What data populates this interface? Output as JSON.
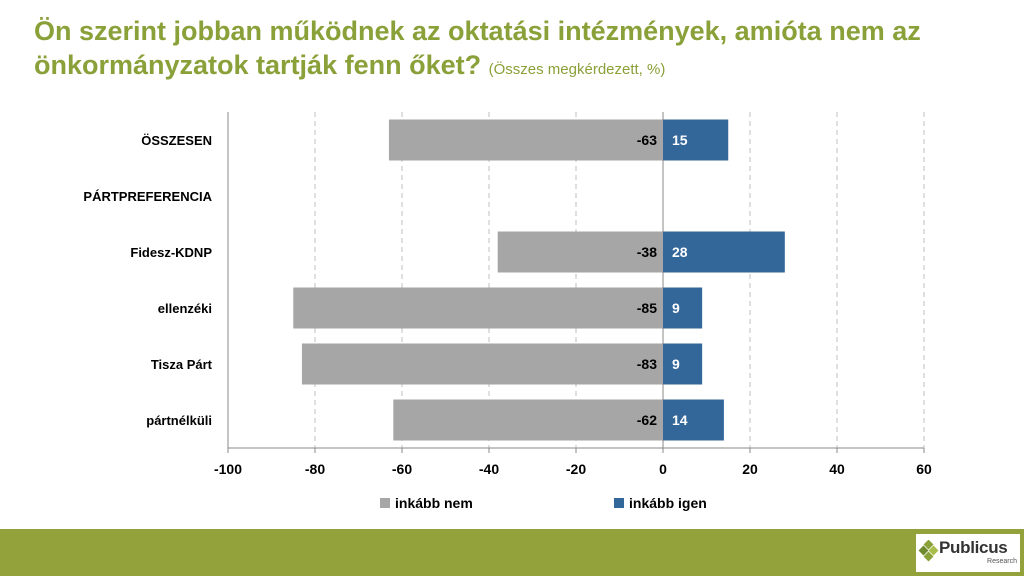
{
  "title": {
    "main": "Ön szerint jobban működnek az oktatási intézmények, amióta nem az önkormányzatok tartják fenn őket?",
    "subtitle": "(Összes megkérdezett, %)"
  },
  "chart_data": {
    "type": "bar",
    "orientation": "horizontal",
    "stacked": "diverging",
    "categories": [
      "ÖSSZESEN",
      "PÁRTPREFERENCIA",
      "Fidesz-KDNP",
      "ellenzéki",
      "Tisza Párt",
      "pártnélküli"
    ],
    "series": [
      {
        "name": "inkább nem",
        "values": [
          -63,
          null,
          -38,
          -85,
          -83,
          -62
        ],
        "color": "#a6a6a6",
        "label_color": "#000000"
      },
      {
        "name": "inkább igen",
        "values": [
          15,
          null,
          28,
          9,
          9,
          14
        ],
        "color": "#336699",
        "label_color": "#ffffff"
      }
    ],
    "xlim": [
      -100,
      60
    ],
    "xticks": [
      -100,
      -80,
      -60,
      -40,
      -20,
      0,
      20,
      40,
      60
    ],
    "grid": true,
    "legend": "bottom-center"
  },
  "colors": {
    "title": "#8aa039",
    "footer": "#93a23a"
  },
  "logo": {
    "name": "Publicus",
    "sub": "Research",
    "icon": "publicus-diamond-icon"
  }
}
